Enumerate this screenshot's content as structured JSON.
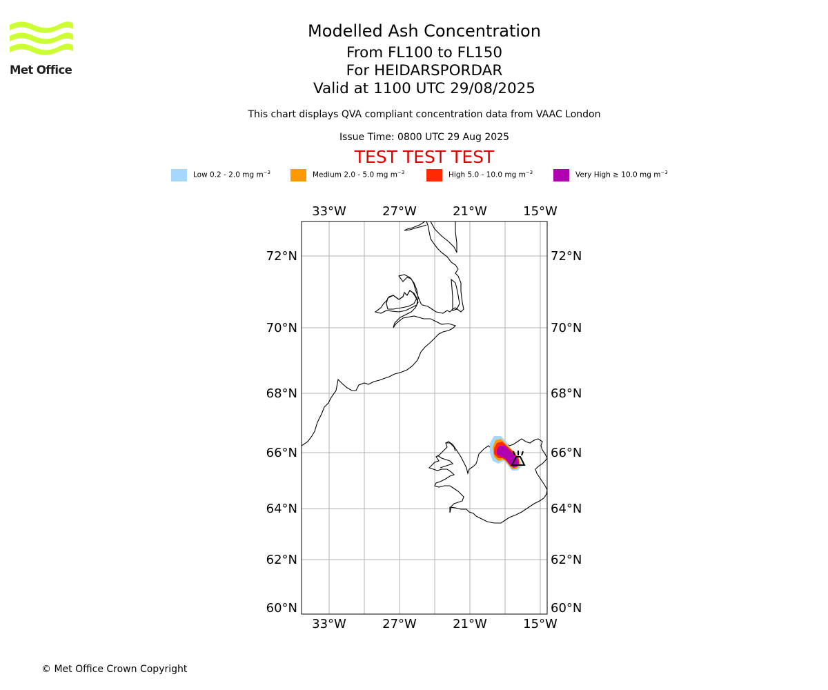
{
  "logo": {
    "text": "Met Office",
    "color": "#ccff33"
  },
  "title": {
    "line1": "Modelled Ash Concentration",
    "line2": "From FL100 to FL150",
    "line3": "For HEIDARSPORDAR",
    "line4": "Valid at 1100 UTC 29/08/2025",
    "subtitle": "This chart displays QVA compliant concentration data from VAAC London",
    "issue_time": "Issue Time: 0800 UTC 29 Aug 2025",
    "test_banner": "TEST TEST TEST",
    "test_color": "#e00000"
  },
  "legend": [
    {
      "label": "Low 0.2 - 2.0 mg m",
      "exp": "−3",
      "color": "#a6d8ff"
    },
    {
      "label": "Medium 2.0 - 5.0 mg m",
      "exp": "−3",
      "color": "#ff9900"
    },
    {
      "label": "High 5.0 - 10.0 mg m",
      "exp": "−3",
      "color": "#ff2a00"
    },
    {
      "label": "Very High ≥ 10.0 mg m",
      "exp": "−3",
      "color": "#b000b0"
    }
  ],
  "map": {
    "lon_ticks": [
      "33°W",
      "27°W",
      "21°W",
      "15°W"
    ],
    "lat_ticks": [
      "72°N",
      "70°N",
      "68°N",
      "66°N",
      "64°N",
      "62°N",
      "60°N"
    ],
    "volcano_icon": "volcano-icon"
  },
  "footer": {
    "copyright": "© Met Office Crown Copyright"
  }
}
